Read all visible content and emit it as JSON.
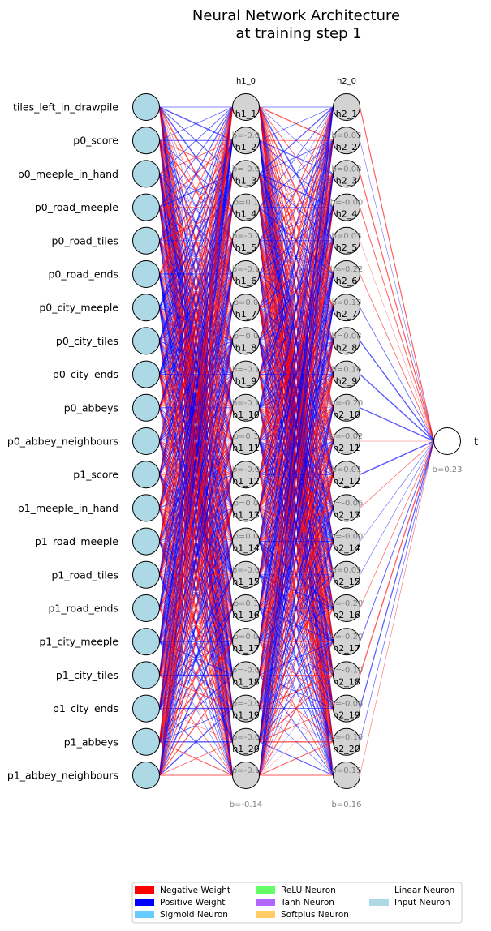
{
  "title": {
    "line1": "Neural Network Architecture",
    "line2": "at training step 1"
  },
  "colors": {
    "negative_weight": "#ff0000",
    "positive_weight": "#0000ff",
    "input_neuron": "#add8e6",
    "hidden_neuron": "#d3d3d3",
    "output_neuron": "#ffffff",
    "relu_neuron": "#66ff66",
    "sigmoid_neuron": "#66ccff",
    "tanh_neuron": "#b366ff",
    "softplus_neuron": "#ffcc66",
    "bias_text": "#808080"
  },
  "inputs": [
    "tiles_left_in_drawpile",
    "p0_score",
    "p0_meeple_in_hand",
    "p0_road_meeple",
    "p0_road_tiles",
    "p0_road_ends",
    "p0_city_meeple",
    "p0_city_tiles",
    "p0_city_ends",
    "p0_abbeys",
    "p0_abbey_neighbours",
    "p1_score",
    "p1_meeple_in_hand",
    "p1_road_meeple",
    "p1_road_tiles",
    "p1_road_ends",
    "p1_city_meeple",
    "p1_city_tiles",
    "p1_city_ends",
    "p1_abbeys",
    "p1_abbey_neighbours"
  ],
  "hidden_layers": [
    {
      "header": "h1_0",
      "neurons": [
        {
          "label": "h1_1",
          "bias": ""
        },
        {
          "label": "h1_2",
          "bias": "b=-0.0"
        },
        {
          "label": "h1_3",
          "bias": "b=-0.0"
        },
        {
          "label": "h1_4",
          "bias": "b=0.1"
        },
        {
          "label": "h1_5",
          "bias": "b=-0.2"
        },
        {
          "label": "h1_6",
          "bias": "b=-0.1"
        },
        {
          "label": "h1_7",
          "bias": "b=0.0"
        },
        {
          "label": "h1_8",
          "bias": "b=0.0"
        },
        {
          "label": "h1_9",
          "bias": "b=-0.1"
        },
        {
          "label": "h1_10",
          "bias": "b=-0.1"
        },
        {
          "label": "h1_11",
          "bias": "b=0.1"
        },
        {
          "label": "h1_12",
          "bias": "b=-0.0"
        },
        {
          "label": "h1_13",
          "bias": "b=0.0"
        },
        {
          "label": "h1_14",
          "bias": "b=0.0"
        },
        {
          "label": "h1_15",
          "bias": "b=-0.0"
        },
        {
          "label": "h1_16",
          "bias": "b=0.1"
        },
        {
          "label": "h1_17",
          "bias": "b=0.0"
        },
        {
          "label": "h1_18",
          "bias": "b=-0.0"
        },
        {
          "label": "h1_19",
          "bias": "b=-0.0"
        },
        {
          "label": "h1_20",
          "bias": "b=-0.0"
        },
        {
          "label": "",
          "bias": "b=-0.1"
        }
      ],
      "bias_note": "b=-0.14"
    },
    {
      "header": "h2_0",
      "neurons": [
        {
          "label": "h2_1",
          "bias": ""
        },
        {
          "label": "h2_2",
          "bias": "b=0.03"
        },
        {
          "label": "h2_3",
          "bias": "b=0.08"
        },
        {
          "label": "h2_4",
          "bias": "b=-0.00"
        },
        {
          "label": "h2_5",
          "bias": "b=0.03"
        },
        {
          "label": "h2_6",
          "bias": "b=-0.22"
        },
        {
          "label": "h2_7",
          "bias": "b=0.13"
        },
        {
          "label": "h2_8",
          "bias": "b=0.08"
        },
        {
          "label": "h2_9",
          "bias": "b=0.16"
        },
        {
          "label": "h2_10",
          "bias": "b=-0.20"
        },
        {
          "label": "h2_11",
          "bias": "b=-0.02"
        },
        {
          "label": "h2_12",
          "bias": "b=0.01"
        },
        {
          "label": "h2_13",
          "bias": "b=-0.06"
        },
        {
          "label": "h2_14",
          "bias": "b=-0.00"
        },
        {
          "label": "h2_15",
          "bias": "b=0.05"
        },
        {
          "label": "h2_16",
          "bias": "b=-0.20"
        },
        {
          "label": "h2_17",
          "bias": "b=-0.20"
        },
        {
          "label": "h2_18",
          "bias": "b=-0.10"
        },
        {
          "label": "h2_19",
          "bias": "b=-0.06"
        },
        {
          "label": "h2_20",
          "bias": "b=-0.10"
        },
        {
          "label": "",
          "bias": "b=0.15"
        }
      ],
      "bias_note": "b=0.16"
    }
  ],
  "output": {
    "label": "t",
    "bias": "b=0.23"
  },
  "legend": [
    {
      "label": "Negative Weight",
      "color": "#ff0000"
    },
    {
      "label": "Positive Weight",
      "color": "#0000ff"
    },
    {
      "label": "Sigmoid Neuron",
      "color": "#66ccff"
    },
    {
      "label": "ReLU Neuron",
      "color": "#66ff66"
    },
    {
      "label": "Tanh Neuron",
      "color": "#b366ff"
    },
    {
      "label": "Softplus Neuron",
      "color": "#ffcc66"
    },
    {
      "label": "Linear Neuron",
      "color": "#ffffff"
    },
    {
      "label": "Input Neuron",
      "color": "#add8e6"
    }
  ]
}
